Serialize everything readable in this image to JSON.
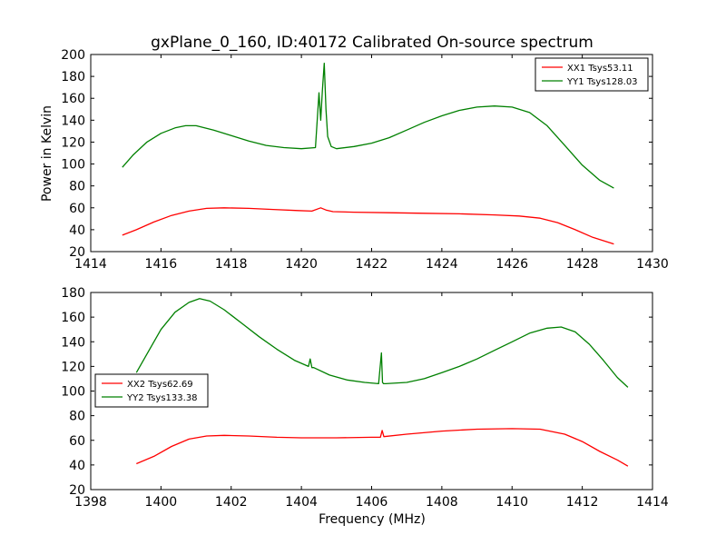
{
  "colors": {
    "xx": "#ff0000",
    "yy": "#008000"
  },
  "chart_data": [
    {
      "type": "line",
      "title": "gxPlane_0_160, ID:40172 Calibrated On-source spectrum",
      "xlabel": "",
      "ylabel": "Power in Kelvin",
      "xlim": [
        1414,
        1430
      ],
      "ylim": [
        20,
        200
      ],
      "xticks": [
        "1414",
        "1416",
        "1418",
        "1420",
        "1422",
        "1424",
        "1426",
        "1428",
        "1430"
      ],
      "yticks": [
        "20",
        "40",
        "60",
        "80",
        "100",
        "120",
        "140",
        "160",
        "180",
        "200"
      ],
      "grid": false,
      "legend": "top-right",
      "series": [
        {
          "name": "XX1 Tsys53.11",
          "color": "#ff0000",
          "x": [
            1414.9,
            1415.3,
            1415.8,
            1416.3,
            1416.8,
            1417.3,
            1417.8,
            1418.5,
            1419.2,
            1419.9,
            1420.3,
            1420.55,
            1420.7,
            1420.9,
            1421.5,
            1422.5,
            1423.5,
            1424.5,
            1425.5,
            1426.2,
            1426.8,
            1427.3,
            1427.8,
            1428.3,
            1428.9
          ],
          "y": [
            35,
            40,
            47,
            53,
            57,
            59.5,
            60,
            59.5,
            58.5,
            57.5,
            57,
            60,
            58,
            56.5,
            56,
            55.5,
            55,
            54.5,
            53.5,
            52.5,
            50.5,
            46.5,
            40,
            33,
            27
          ]
        },
        {
          "name": "YY1 Tsys128.03",
          "color": "#008000",
          "x": [
            1414.9,
            1415.2,
            1415.6,
            1416.0,
            1416.4,
            1416.7,
            1417.0,
            1417.5,
            1418.0,
            1418.5,
            1419.0,
            1419.5,
            1420.0,
            1420.4,
            1420.5,
            1420.55,
            1420.6,
            1420.65,
            1420.7,
            1420.75,
            1420.85,
            1421.0,
            1421.5,
            1422.0,
            1422.5,
            1423.0,
            1423.5,
            1424.0,
            1424.5,
            1425.0,
            1425.5,
            1426.0,
            1426.5,
            1427.0,
            1427.5,
            1428.0,
            1428.5,
            1428.9
          ],
          "y": [
            97,
            108,
            120,
            128,
            133,
            135,
            135,
            131,
            126,
            121,
            117,
            115,
            114,
            115,
            165,
            140,
            168,
            192,
            150,
            125,
            116,
            114,
            116,
            119,
            124,
            131,
            138,
            144,
            149,
            152,
            153,
            152,
            147,
            135,
            117,
            99,
            85,
            78
          ]
        }
      ]
    },
    {
      "type": "line",
      "title": "",
      "xlabel": "Frequency (MHz)",
      "ylabel": "",
      "xlim": [
        1398,
        1414
      ],
      "ylim": [
        20,
        180
      ],
      "xticks": [
        "1398",
        "1400",
        "1402",
        "1404",
        "1406",
        "1408",
        "1410",
        "1412",
        "1414"
      ],
      "yticks": [
        "20",
        "40",
        "60",
        "80",
        "100",
        "120",
        "140",
        "160",
        "180"
      ],
      "grid": false,
      "legend": "center-left",
      "series": [
        {
          "name": "XX2 Tsys62.69",
          "color": "#ff0000",
          "x": [
            1399.3,
            1399.8,
            1400.3,
            1400.8,
            1401.3,
            1401.8,
            1402.5,
            1403.3,
            1404.0,
            1405.0,
            1406.0,
            1406.25,
            1406.3,
            1406.35,
            1407.0,
            1408.0,
            1409.0,
            1410.0,
            1410.8,
            1411.5,
            1412.0,
            1412.5,
            1413.0,
            1413.3
          ],
          "y": [
            41,
            47,
            55,
            61,
            63.5,
            64,
            63.5,
            62.5,
            62,
            62,
            62.5,
            62.5,
            68,
            63,
            65,
            67.5,
            69,
            69.5,
            69,
            65,
            59,
            51,
            44,
            39
          ]
        },
        {
          "name": "YY2 Tsys133.38",
          "color": "#008000",
          "x": [
            1399.3,
            1399.6,
            1400.0,
            1400.4,
            1400.8,
            1401.1,
            1401.4,
            1401.8,
            1402.3,
            1402.8,
            1403.3,
            1403.8,
            1404.2,
            1404.25,
            1404.3,
            1404.35,
            1404.8,
            1405.3,
            1405.8,
            1406.2,
            1406.28,
            1406.31,
            1406.34,
            1406.4,
            1407.0,
            1407.5,
            1408.0,
            1408.5,
            1409.0,
            1409.5,
            1410.0,
            1410.5,
            1411.0,
            1411.4,
            1411.8,
            1412.2,
            1412.6,
            1413.0,
            1413.3
          ],
          "y": [
            115,
            130,
            150,
            164,
            172,
            175,
            173,
            166,
            155,
            144,
            134,
            125,
            120,
            126,
            119,
            119,
            113,
            109,
            107,
            106,
            131,
            107,
            106,
            106,
            107,
            110,
            115,
            120,
            126,
            133,
            140,
            147,
            151,
            152,
            148,
            138,
            125,
            111,
            103
          ]
        }
      ]
    }
  ]
}
